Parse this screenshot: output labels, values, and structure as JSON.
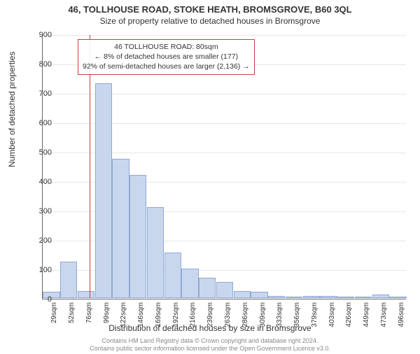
{
  "title_main": "46, TOLLHOUSE ROAD, STOKE HEATH, BROMSGROVE, B60 3QL",
  "title_sub": "Size of property relative to detached houses in Bromsgrove",
  "chart": {
    "type": "histogram",
    "ylabel": "Number of detached properties",
    "xlabel": "Distribution of detached houses by size in Bromsgrove",
    "ylim": [
      0,
      900
    ],
    "ytick_step": 100,
    "yticks": [
      0,
      100,
      200,
      300,
      400,
      500,
      600,
      700,
      800,
      900
    ],
    "bar_fill": "#c9d7ee",
    "bar_border": "#8fa8d4",
    "grid_color": "#e8e8e8",
    "axis_color": "#666666",
    "background_color": "#ffffff",
    "bars": [
      {
        "label": "29sqm",
        "value": 22
      },
      {
        "label": "52sqm",
        "value": 125
      },
      {
        "label": "76sqm",
        "value": 25
      },
      {
        "label": "99sqm",
        "value": 730
      },
      {
        "label": "122sqm",
        "value": 475
      },
      {
        "label": "146sqm",
        "value": 420
      },
      {
        "label": "169sqm",
        "value": 310
      },
      {
        "label": "192sqm",
        "value": 155
      },
      {
        "label": "216sqm",
        "value": 100
      },
      {
        "label": "239sqm",
        "value": 70
      },
      {
        "label": "263sqm",
        "value": 55
      },
      {
        "label": "286sqm",
        "value": 25
      },
      {
        "label": "309sqm",
        "value": 22
      },
      {
        "label": "333sqm",
        "value": 8
      },
      {
        "label": "356sqm",
        "value": 5
      },
      {
        "label": "379sqm",
        "value": 6
      },
      {
        "label": "403sqm",
        "value": 6
      },
      {
        "label": "426sqm",
        "value": 2
      },
      {
        "label": "449sqm",
        "value": 3
      },
      {
        "label": "473sqm",
        "value": 12
      },
      {
        "label": "496sqm",
        "value": 2
      }
    ],
    "marker": {
      "color": "#d33a3a",
      "position_index": 2.2
    },
    "annotation": {
      "border_color": "#d33a3a",
      "line1": "46 TOLLHOUSE ROAD: 80sqm",
      "line2": "← 8% of detached houses are smaller (177)",
      "line3": "92% of semi-detached houses are larger (2,136) →"
    }
  },
  "footer": {
    "line1": "Contains HM Land Registry data © Crown copyright and database right 2024.",
    "line2": "Contains public sector information licensed under the Open Government Licence v3.0."
  },
  "fonts": {
    "title_main_size": 13,
    "title_sub_size": 12,
    "axis_label_size": 12,
    "tick_size": 11,
    "xtick_size": 10,
    "annotation_size": 10.5,
    "footer_size": 9
  }
}
